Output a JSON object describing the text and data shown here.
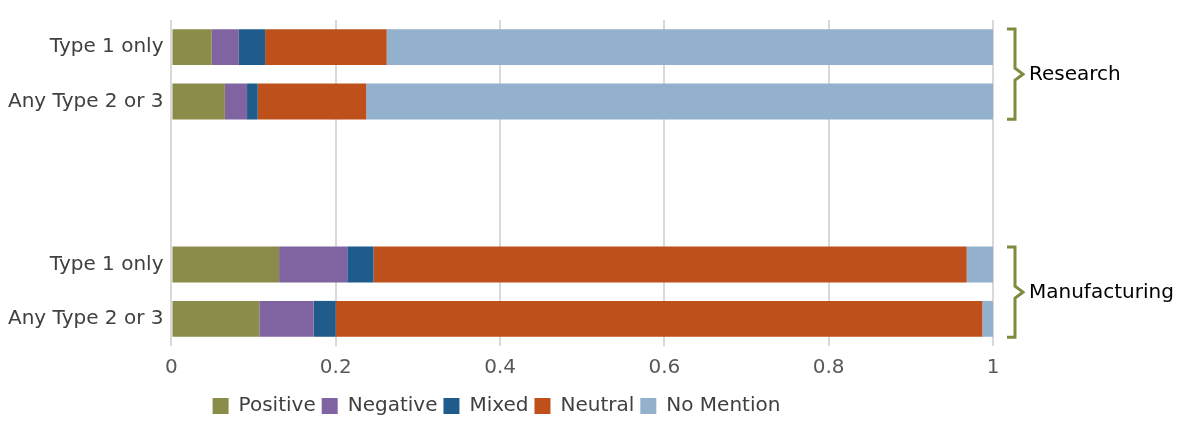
{
  "chart_data": {
    "type": "bar",
    "orientation": "horizontal",
    "stacked": true,
    "categories": [
      "Type 1 only",
      "Any Type 2 or 3",
      null,
      null,
      "Type 1 only",
      "Any Type 2 or 3"
    ],
    "series": [
      {
        "name": "Positive",
        "color": "#8a8d4a",
        "values": [
          0.049,
          0.065,
          null,
          null,
          0.131,
          0.107
        ]
      },
      {
        "name": "Negative",
        "color": "#8064a2",
        "values": [
          0.033,
          0.027,
          null,
          null,
          0.083,
          0.066
        ]
      },
      {
        "name": "Mixed",
        "color": "#1f5c8b",
        "values": [
          0.032,
          0.013,
          null,
          null,
          0.032,
          0.027
        ]
      },
      {
        "name": "Neutral",
        "color": "#bd501b",
        "values": [
          0.148,
          0.132,
          null,
          null,
          0.722,
          0.787
        ]
      },
      {
        "name": "No Mention",
        "color": "#93b1cd",
        "values": [
          0.738,
          0.763,
          null,
          null,
          0.032,
          0.013
        ]
      }
    ],
    "xlim": [
      0,
      1
    ],
    "xticks": [
      0,
      0.2,
      0.4,
      0.6,
      0.8,
      1
    ],
    "grid": "x",
    "legend": "bottom",
    "annotations": [
      "Research",
      "Manufacturing"
    ]
  }
}
